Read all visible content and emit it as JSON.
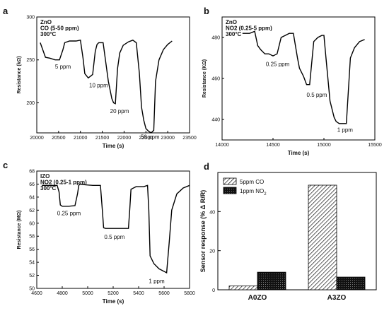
{
  "chart_data": [
    {
      "panel": "a",
      "type": "line",
      "annotation": [
        "ZnO",
        "CO (5-50 ppm)",
        "300°C"
      ],
      "xlabel": "Time (s)",
      "ylabel": "Resistance (kΩ)",
      "xlim": [
        20000,
        23500
      ],
      "ylim": [
        165,
        300
      ],
      "xticks": [
        20000,
        20500,
        21000,
        21500,
        22000,
        22500,
        23000,
        23500
      ],
      "yticks": [
        200,
        250,
        300
      ],
      "x": [
        20080,
        20200,
        20300,
        20420,
        20520,
        20600,
        20640,
        20750,
        20900,
        21000,
        21060,
        21100,
        21180,
        21280,
        21340,
        21380,
        21420,
        21520,
        21640,
        21720,
        21760,
        21800,
        21850,
        21900,
        21980,
        22100,
        22200,
        22280,
        22350,
        22400,
        22450,
        22500,
        22560,
        22620,
        22680,
        22720,
        22800,
        22900,
        23000,
        23100
      ],
      "y": [
        270,
        253,
        252,
        250,
        250,
        262,
        270,
        272,
        272,
        273,
        252,
        234,
        229,
        233,
        260,
        268,
        270,
        270,
        225,
        205,
        200,
        199,
        240,
        258,
        267,
        271,
        273,
        270,
        235,
        195,
        180,
        170,
        167,
        165,
        168,
        225,
        250,
        262,
        268,
        272
      ],
      "labels": [
        {
          "text": "5 ppm",
          "x": 20420,
          "y": 240
        },
        {
          "text": "10 ppm",
          "x": 21200,
          "y": 218
        },
        {
          "text": "20 ppm",
          "x": 21680,
          "y": 188
        },
        {
          "text": "50 ppm",
          "x": 22380,
          "y": 158
        }
      ]
    },
    {
      "panel": "b",
      "type": "line",
      "annotation": [
        "ZnO",
        "NO2 (0.25-5 ppm)",
        "300°C"
      ],
      "xlabel": "Time (s)",
      "ylabel": "Resistance (KΩ)",
      "xlim": [
        14000,
        15500
      ],
      "ylim": [
        430,
        490
      ],
      "xticks": [
        14000,
        14500,
        15000,
        15500
      ],
      "yticks": [
        440,
        460,
        480
      ],
      "x": [
        14200,
        14270,
        14320,
        14350,
        14380,
        14420,
        14460,
        14500,
        14540,
        14580,
        14620,
        14660,
        14700,
        14740,
        14760,
        14800,
        14830,
        14860,
        14900,
        14940,
        14980,
        15000,
        15020,
        15060,
        15100,
        15120,
        15150,
        15180,
        15220,
        15260,
        15300,
        15350,
        15400
      ],
      "y": [
        482,
        482,
        483,
        476,
        474,
        472,
        472,
        471,
        472,
        480,
        481,
        482,
        482,
        470,
        465,
        461,
        457,
        457,
        478,
        480,
        481,
        481,
        470,
        449,
        441,
        439,
        438,
        438,
        438,
        470,
        475,
        478,
        479
      ],
      "labels": [
        {
          "text": "0.25 ppm",
          "x": 14430,
          "y": 466
        },
        {
          "text": "0.5 ppm",
          "x": 14830,
          "y": 451
        },
        {
          "text": "1 ppm",
          "x": 15130,
          "y": 434
        }
      ]
    },
    {
      "panel": "c",
      "type": "line",
      "annotation": [
        "IZO",
        "NO2 (0.25-1 ppm)",
        "300°C"
      ],
      "xlabel": "Time (s)",
      "ylabel": "Resistance (MΩ)",
      "xlim": [
        4600,
        5800
      ],
      "ylim": [
        50,
        68
      ],
      "xticks": [
        4600,
        4800,
        5000,
        5200,
        5400,
        5600,
        5800
      ],
      "yticks": [
        50,
        52,
        54,
        56,
        58,
        60,
        62,
        64,
        66,
        68
      ],
      "x": [
        4640,
        4700,
        4760,
        4775,
        4785,
        4800,
        4850,
        4900,
        4920,
        4930,
        4940,
        4980,
        5040,
        5100,
        5115,
        5125,
        5140,
        5180,
        5250,
        5320,
        5330,
        5340,
        5380,
        5440,
        5470,
        5480,
        5490,
        5520,
        5560,
        5600,
        5620,
        5640,
        5660,
        5700,
        5750,
        5800
      ],
      "y": [
        65.8,
        65.8,
        65.8,
        64.8,
        62.8,
        62.6,
        62.6,
        62.7,
        64.5,
        65.8,
        66.0,
        65.9,
        65.8,
        65.8,
        62.0,
        59.3,
        59.2,
        59.2,
        59.2,
        59.2,
        62.0,
        65.2,
        65.6,
        65.6,
        65.8,
        62.0,
        55.0,
        53.8,
        53.0,
        52.6,
        52.4,
        57.0,
        62.0,
        64.5,
        65.4,
        65.8
      ],
      "labels": [
        {
          "text": "0.25 ppm",
          "x": 4760,
          "y": 61.2
        },
        {
          "text": "0.5 ppm",
          "x": 5130,
          "y": 57.6
        },
        {
          "text": "1 ppm",
          "x": 5480,
          "y": 50.8
        }
      ]
    },
    {
      "panel": "d",
      "type": "bar",
      "xlabel": "",
      "ylabel": "Sensor response (% Δ R/R)",
      "ylim": [
        0,
        60
      ],
      "yticks": [
        0,
        20,
        40
      ],
      "categories": [
        "A0ZO",
        "A3ZO"
      ],
      "series": [
        {
          "name": "5ppm CO",
          "values": [
            2,
            53.5
          ]
        },
        {
          "name": "1ppm NO2",
          "values": [
            9,
            6.5
          ]
        }
      ],
      "legend": "top-left"
    }
  ],
  "panel_letters": [
    "a",
    "b",
    "c",
    "d"
  ]
}
